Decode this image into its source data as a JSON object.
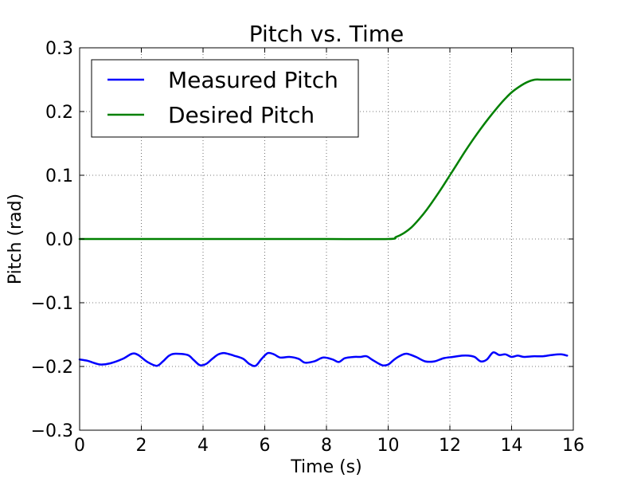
{
  "chart_data": {
    "type": "line",
    "title": "Pitch vs. Time",
    "xlabel": "Time (s)",
    "ylabel": "Pitch (rad)",
    "xlim": [
      0,
      16
    ],
    "ylim": [
      -0.3,
      0.3
    ],
    "xticks": [
      0,
      2,
      4,
      6,
      8,
      10,
      12,
      14,
      16
    ],
    "yticks": [
      -0.3,
      -0.2,
      -0.1,
      0.0,
      0.1,
      0.2,
      0.3
    ],
    "xtick_labels": [
      "0",
      "2",
      "4",
      "6",
      "8",
      "10",
      "12",
      "14",
      "16"
    ],
    "ytick_labels": [
      "−0.3",
      "−0.2",
      "−0.1",
      "0.0",
      "0.1",
      "0.2",
      "0.3"
    ],
    "grid": true,
    "legend_position": "top-left",
    "series": [
      {
        "name": "Measured Pitch",
        "color": "#0000ff",
        "x": [
          0,
          0.25,
          0.5,
          0.7,
          1.0,
          1.4,
          1.7,
          1.9,
          2.2,
          2.5,
          2.7,
          2.9,
          3.1,
          3.5,
          3.7,
          3.9,
          4.1,
          4.3,
          4.5,
          4.7,
          5.0,
          5.3,
          5.5,
          5.7,
          5.9,
          6.1,
          6.3,
          6.5,
          6.8,
          7.1,
          7.3,
          7.6,
          7.9,
          8.2,
          8.4,
          8.6,
          8.9,
          9.1,
          9.3,
          9.5,
          9.8,
          10.0,
          10.2,
          10.4,
          10.6,
          10.9,
          11.2,
          11.5,
          11.8,
          12.1,
          12.4,
          12.6,
          12.8,
          13.0,
          13.2,
          13.4,
          13.6,
          13.8,
          14.0,
          14.2,
          14.4,
          14.7,
          15.0,
          15.3,
          15.6,
          15.8
        ],
        "y": [
          -0.189,
          -0.191,
          -0.195,
          -0.197,
          -0.195,
          -0.188,
          -0.18,
          -0.182,
          -0.193,
          -0.199,
          -0.192,
          -0.183,
          -0.18,
          -0.182,
          -0.19,
          -0.198,
          -0.196,
          -0.188,
          -0.181,
          -0.179,
          -0.183,
          -0.188,
          -0.196,
          -0.199,
          -0.188,
          -0.179,
          -0.181,
          -0.186,
          -0.185,
          -0.188,
          -0.194,
          -0.192,
          -0.186,
          -0.189,
          -0.193,
          -0.187,
          -0.185,
          -0.185,
          -0.184,
          -0.19,
          -0.198,
          -0.197,
          -0.189,
          -0.183,
          -0.18,
          -0.185,
          -0.192,
          -0.192,
          -0.187,
          -0.185,
          -0.183,
          -0.183,
          -0.185,
          -0.192,
          -0.189,
          -0.178,
          -0.182,
          -0.181,
          -0.185,
          -0.183,
          -0.185,
          -0.184,
          -0.184,
          -0.182,
          -0.181,
          -0.183
        ]
      },
      {
        "name": "Desired Pitch",
        "color": "#008000",
        "x": [
          0,
          2,
          4,
          6,
          8,
          10,
          10.25,
          10.5,
          10.75,
          11.0,
          11.25,
          11.5,
          11.75,
          12.0,
          12.25,
          12.5,
          12.75,
          13.0,
          13.25,
          13.5,
          13.75,
          14.0,
          14.25,
          14.5,
          14.75,
          15.0,
          15.5,
          15.9
        ],
        "y": [
          0,
          0,
          0,
          0,
          0,
          0,
          0.003,
          0.009,
          0.018,
          0.031,
          0.046,
          0.063,
          0.081,
          0.1,
          0.119,
          0.138,
          0.156,
          0.173,
          0.189,
          0.204,
          0.218,
          0.23,
          0.239,
          0.246,
          0.25,
          0.25,
          0.25,
          0.25
        ]
      }
    ]
  }
}
